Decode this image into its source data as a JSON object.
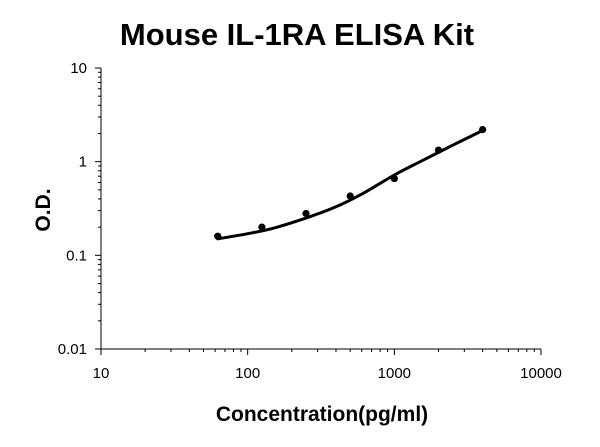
{
  "chart_data": {
    "type": "scatter",
    "title": "Mouse IL-1RA ELISA Kit",
    "xlabel": "Concentration(pg/ml)",
    "ylabel": "O.D.",
    "x_scale": "log",
    "y_scale": "log",
    "xlim": [
      10,
      10000
    ],
    "ylim": [
      0.01,
      10
    ],
    "x_ticks": [
      "10",
      "100",
      "1000",
      "10000"
    ],
    "y_ticks": [
      "0.01",
      "0.1",
      "1",
      "10"
    ],
    "grid": false,
    "legend": "none",
    "series": [
      {
        "points": [
          {
            "x": 62.5,
            "y": 0.16
          },
          {
            "x": 125,
            "y": 0.2
          },
          {
            "x": 250,
            "y": 0.28
          },
          {
            "x": 500,
            "y": 0.43
          },
          {
            "x": 1000,
            "y": 0.66
          },
          {
            "x": 2000,
            "y": 1.33
          },
          {
            "x": 4000,
            "y": 2.2
          }
        ],
        "fit_curve": [
          {
            "x": 62.5,
            "y": 0.15
          },
          {
            "x": 100,
            "y": 0.17
          },
          {
            "x": 150,
            "y": 0.195
          },
          {
            "x": 250,
            "y": 0.25
          },
          {
            "x": 400,
            "y": 0.33
          },
          {
            "x": 600,
            "y": 0.45
          },
          {
            "x": 1000,
            "y": 0.72
          },
          {
            "x": 1500,
            "y": 1.0
          },
          {
            "x": 2500,
            "y": 1.5
          },
          {
            "x": 4000,
            "y": 2.15
          }
        ],
        "color": "#000000"
      }
    ]
  }
}
